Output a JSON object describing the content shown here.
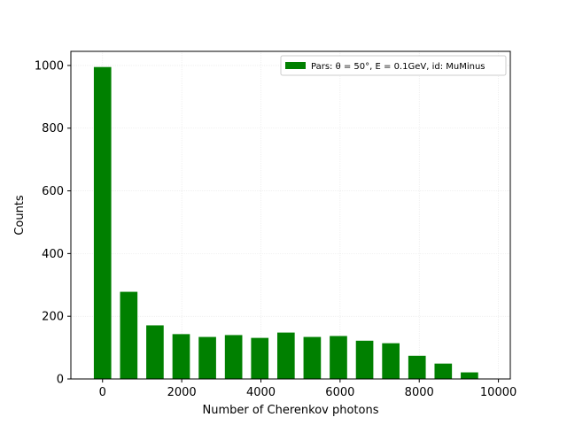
{
  "chart_data": {
    "type": "bar",
    "xlabel": "Number of Cherenkov photons",
    "ylabel": "Counts",
    "xlim": [
      -800,
      10300
    ],
    "ylim": [
      0,
      1045
    ],
    "xticks": [
      0,
      2000,
      4000,
      6000,
      8000,
      10000
    ],
    "yticks": [
      0,
      200,
      400,
      600,
      800,
      1000
    ],
    "grid": true,
    "legend_position": "top-right",
    "bar_color": "#008000",
    "bin_width": 440,
    "series": [
      {
        "name": "Pars: θ = 50°, E = 0.1GeV, id: MuMinus",
        "x": [
          0,
          662,
          1324,
          1986,
          2648,
          3310,
          3972,
          4634,
          5296,
          5958,
          6620,
          7282,
          7944,
          8606,
          9268
        ],
        "values": [
          995,
          278,
          171,
          143,
          134,
          140,
          131,
          148,
          134,
          137,
          122,
          114,
          74,
          49,
          21
        ]
      }
    ]
  }
}
